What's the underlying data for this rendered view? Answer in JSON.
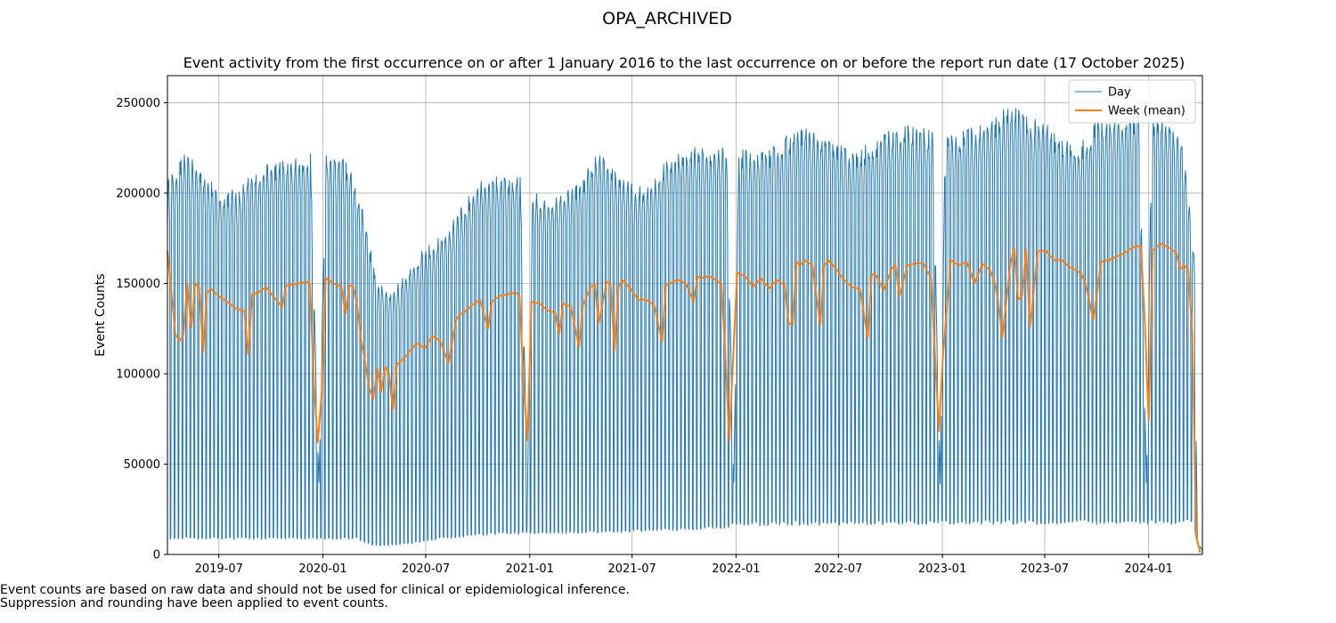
{
  "figure_title": "OPA_ARCHIVED",
  "footnotes": [
    "Event counts are based on raw data and should not be used for clinical or epidemiological inference.",
    "Suppression and rounding have been applied to event counts."
  ],
  "colors": {
    "day": "#1f77b4",
    "week": "#ff7f0e",
    "grid": "#b0b0b0"
  },
  "chart_data": {
    "type": "line",
    "title": "Event activity from the first occurrence on or after 1 January 2016 to the last occurrence on or before the report run date (17 October 2025)",
    "xlabel": "",
    "ylabel": "Event Counts",
    "xlim": [
      "2019-04-01",
      "2024-04-05"
    ],
    "ylim": [
      0,
      265000
    ],
    "xticks": [
      "2019-07",
      "2020-01",
      "2020-07",
      "2021-01",
      "2021-07",
      "2022-01",
      "2022-07",
      "2023-01",
      "2023-07",
      "2024-01"
    ],
    "yticks": [
      0,
      50000,
      100000,
      150000,
      200000,
      250000
    ],
    "grid": true,
    "legend": {
      "position": "top-right",
      "entries": [
        "Day",
        "Week (mean)"
      ]
    },
    "series": [
      {
        "name": "Day",
        "kind": "daily weekday/weekend pattern",
        "note": "Daily counts oscillate weekly between the weekday level and the weekend level listed per anchor date",
        "weekday_level": [
          [
            "2019-04-01",
            205000
          ],
          [
            "2019-05-01",
            220000
          ],
          [
            "2019-06-01",
            212000
          ],
          [
            "2019-07-01",
            200000
          ],
          [
            "2019-08-01",
            200000
          ],
          [
            "2019-09-01",
            210000
          ],
          [
            "2019-10-01",
            215000
          ],
          [
            "2019-11-01",
            217000
          ],
          [
            "2019-12-10",
            220000
          ],
          [
            "2019-12-25",
            40000
          ],
          [
            "2020-01-06",
            222000
          ],
          [
            "2020-02-15",
            215000
          ],
          [
            "2020-03-15",
            185000
          ],
          [
            "2020-04-05",
            150000
          ],
          [
            "2020-05-01",
            145000
          ],
          [
            "2020-06-01",
            155000
          ],
          [
            "2020-07-01",
            170000
          ],
          [
            "2020-08-01",
            175000
          ],
          [
            "2020-09-01",
            190000
          ],
          [
            "2020-10-01",
            205000
          ],
          [
            "2020-11-01",
            207000
          ],
          [
            "2020-12-15",
            207000
          ],
          [
            "2020-12-28",
            40000
          ],
          [
            "2021-01-06",
            200000
          ],
          [
            "2021-02-01",
            195000
          ],
          [
            "2021-03-01",
            200000
          ],
          [
            "2021-04-01",
            205000
          ],
          [
            "2021-05-01",
            222000
          ],
          [
            "2021-06-01",
            210000
          ],
          [
            "2021-07-01",
            203000
          ],
          [
            "2021-08-01",
            203000
          ],
          [
            "2021-09-01",
            218000
          ],
          [
            "2021-10-01",
            222000
          ],
          [
            "2021-11-01",
            224000
          ],
          [
            "2021-12-15",
            224000
          ],
          [
            "2021-12-28",
            40000
          ],
          [
            "2022-01-06",
            223000
          ],
          [
            "2022-02-01",
            220000
          ],
          [
            "2022-03-01",
            222000
          ],
          [
            "2022-04-01",
            230000
          ],
          [
            "2022-05-01",
            235000
          ],
          [
            "2022-06-01",
            230000
          ],
          [
            "2022-07-01",
            225000
          ],
          [
            "2022-08-01",
            220000
          ],
          [
            "2022-09-01",
            228000
          ],
          [
            "2022-10-01",
            233000
          ],
          [
            "2022-11-01",
            235000
          ],
          [
            "2022-12-15",
            233000
          ],
          [
            "2022-12-28",
            40000
          ],
          [
            "2023-01-06",
            230000
          ],
          [
            "2023-02-01",
            232000
          ],
          [
            "2023-03-01",
            235000
          ],
          [
            "2023-04-01",
            238000
          ],
          [
            "2023-05-01",
            248000
          ],
          [
            "2023-06-01",
            240000
          ],
          [
            "2023-07-01",
            237000
          ],
          [
            "2023-08-01",
            228000
          ],
          [
            "2023-09-01",
            225000
          ],
          [
            "2023-10-01",
            238000
          ],
          [
            "2023-11-01",
            240000
          ],
          [
            "2023-12-15",
            243000
          ],
          [
            "2023-12-28",
            40000
          ],
          [
            "2024-01-06",
            240000
          ],
          [
            "2024-02-01",
            238000
          ],
          [
            "2024-03-01",
            225000
          ],
          [
            "2024-03-22",
            165000
          ],
          [
            "2024-03-27",
            8000
          ],
          [
            "2024-04-05",
            2000
          ]
        ],
        "weekend_level": [
          [
            "2019-04-01",
            9000
          ],
          [
            "2019-12-01",
            9000
          ],
          [
            "2020-01-01",
            9000
          ],
          [
            "2020-03-01",
            9000
          ],
          [
            "2020-04-01",
            5000
          ],
          [
            "2020-06-01",
            6000
          ],
          [
            "2020-07-01",
            8000
          ],
          [
            "2020-09-01",
            10000
          ],
          [
            "2020-12-01",
            12000
          ],
          [
            "2021-06-01",
            13000
          ],
          [
            "2021-12-01",
            15000
          ],
          [
            "2022-01-01",
            17000
          ],
          [
            "2022-12-01",
            18000
          ],
          [
            "2023-06-01",
            18000
          ],
          [
            "2024-03-20",
            18000
          ],
          [
            "2024-03-27",
            5000
          ],
          [
            "2024-04-05",
            1000
          ]
        ]
      },
      {
        "name": "Week (mean)",
        "x": [
          "2019-04-01",
          "2019-04-08",
          "2019-04-15",
          "2019-04-22",
          "2019-04-29",
          "2019-05-06",
          "2019-05-13",
          "2019-05-20",
          "2019-05-27",
          "2019-06-03",
          "2019-06-10",
          "2019-06-17",
          "2019-07-01",
          "2019-07-15",
          "2019-08-01",
          "2019-08-15",
          "2019-08-22",
          "2019-08-29",
          "2019-09-09",
          "2019-09-23",
          "2019-10-07",
          "2019-10-21",
          "2019-10-28",
          "2019-11-04",
          "2019-11-18",
          "2019-12-02",
          "2019-12-09",
          "2019-12-16",
          "2019-12-23",
          "2019-12-30",
          "2020-01-06",
          "2020-01-20",
          "2020-02-03",
          "2020-02-10",
          "2020-02-17",
          "2020-02-24",
          "2020-03-02",
          "2020-03-09",
          "2020-03-16",
          "2020-03-23",
          "2020-03-30",
          "2020-04-06",
          "2020-04-13",
          "2020-04-20",
          "2020-04-27",
          "2020-05-04",
          "2020-05-11",
          "2020-05-18",
          "2020-05-25",
          "2020-06-01",
          "2020-06-15",
          "2020-06-29",
          "2020-07-13",
          "2020-07-27",
          "2020-08-10",
          "2020-08-24",
          "2020-08-31",
          "2020-09-07",
          "2020-09-21",
          "2020-10-05",
          "2020-10-12",
          "2020-10-19",
          "2020-10-26",
          "2020-11-09",
          "2020-11-23",
          "2020-12-07",
          "2020-12-14",
          "2020-12-21",
          "2020-12-28",
          "2021-01-04",
          "2021-01-18",
          "2021-02-01",
          "2021-02-15",
          "2021-02-22",
          "2021-03-01",
          "2021-03-15",
          "2021-03-29",
          "2021-04-05",
          "2021-04-19",
          "2021-04-26",
          "2021-05-03",
          "2021-05-17",
          "2021-05-24",
          "2021-05-31",
          "2021-06-07",
          "2021-06-14",
          "2021-06-28",
          "2021-07-12",
          "2021-07-26",
          "2021-08-09",
          "2021-08-23",
          "2021-08-30",
          "2021-09-06",
          "2021-09-20",
          "2021-10-04",
          "2021-10-18",
          "2021-10-25",
          "2021-11-01",
          "2021-11-15",
          "2021-12-06",
          "2021-12-13",
          "2021-12-20",
          "2021-12-27",
          "2022-01-03",
          "2022-01-17",
          "2022-01-31",
          "2022-02-14",
          "2022-02-28",
          "2022-03-14",
          "2022-03-28",
          "2022-04-04",
          "2022-04-11",
          "2022-04-18",
          "2022-04-25",
          "2022-05-02",
          "2022-05-16",
          "2022-05-30",
          "2022-06-06",
          "2022-06-13",
          "2022-06-27",
          "2022-07-11",
          "2022-07-25",
          "2022-08-08",
          "2022-08-22",
          "2022-08-29",
          "2022-09-05",
          "2022-09-19",
          "2022-10-03",
          "2022-10-10",
          "2022-10-17",
          "2022-10-31",
          "2022-11-14",
          "2022-11-28",
          "2022-12-12",
          "2022-12-19",
          "2022-12-26",
          "2023-01-02",
          "2023-01-16",
          "2023-01-30",
          "2023-02-13",
          "2023-02-27",
          "2023-03-13",
          "2023-03-27",
          "2023-04-03",
          "2023-04-10",
          "2023-04-17",
          "2023-04-24",
          "2023-05-01",
          "2023-05-08",
          "2023-05-15",
          "2023-05-22",
          "2023-05-29",
          "2023-06-05",
          "2023-06-19",
          "2023-07-03",
          "2023-07-17",
          "2023-07-31",
          "2023-08-14",
          "2023-08-28",
          "2023-09-04",
          "2023-09-11",
          "2023-09-25",
          "2023-10-09",
          "2023-10-23",
          "2023-11-06",
          "2023-11-20",
          "2023-12-04",
          "2023-12-18",
          "2023-12-25",
          "2024-01-01",
          "2024-01-08",
          "2024-01-22",
          "2024-02-05",
          "2024-02-19",
          "2024-02-26",
          "2024-03-04",
          "2024-03-11",
          "2024-03-18",
          "2024-03-25",
          "2024-04-01"
        ],
        "values": [
          168000,
          145000,
          122000,
          118000,
          121000,
          150000,
          125000,
          150000,
          148000,
          112000,
          145000,
          147000,
          143000,
          140000,
          136000,
          135000,
          111000,
          144000,
          145000,
          148000,
          142000,
          137000,
          149000,
          149000,
          150000,
          151000,
          150000,
          95000,
          62000,
          90000,
          153000,
          150000,
          148000,
          133000,
          149000,
          148000,
          137000,
          118000,
          106000,
          92000,
          86000,
          103000,
          90000,
          104000,
          100000,
          80000,
          105000,
          107000,
          109000,
          112000,
          117000,
          114000,
          121000,
          118000,
          106000,
          130000,
          133000,
          134000,
          138000,
          141000,
          133000,
          125000,
          140000,
          143000,
          144000,
          145000,
          143000,
          95000,
          63000,
          140000,
          139000,
          135000,
          134000,
          122000,
          139000,
          137000,
          115000,
          138000,
          148000,
          150000,
          128000,
          151000,
          150000,
          113000,
          148000,
          152000,
          147000,
          141000,
          141000,
          138000,
          118000,
          149000,
          150000,
          152000,
          150000,
          140000,
          154000,
          153000,
          154000,
          150000,
          110000,
          63000,
          110000,
          156000,
          154000,
          148000,
          153000,
          147000,
          152000,
          149000,
          128000,
          127000,
          162000,
          160000,
          163000,
          160000,
          127000,
          160000,
          163000,
          158000,
          152000,
          148000,
          147000,
          120000,
          155000,
          155000,
          146000,
          158000,
          160000,
          143000,
          160000,
          161000,
          161000,
          153000,
          110000,
          68000,
          110000,
          163000,
          160000,
          162000,
          150000,
          161000,
          157000,
          151000,
          140000,
          120000,
          140000,
          160000,
          170000,
          141000,
          143000,
          169000,
          126000,
          168000,
          168000,
          163000,
          163000,
          159000,
          157000,
          155000,
          150000,
          130000,
          162000,
          163000,
          165000,
          167000,
          170000,
          171000,
          130000,
          74000,
          168000,
          172000,
          170000,
          167000,
          158000,
          160000,
          157000,
          123000,
          10000,
          1000
        ]
      }
    ]
  }
}
